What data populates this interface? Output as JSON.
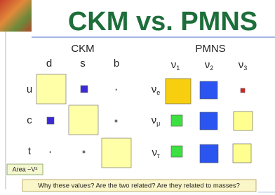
{
  "title": "CKM vs. PMNS",
  "ckm": {
    "heading": "CKM",
    "columns": [
      "d",
      "s",
      "b"
    ],
    "rows": [
      "u",
      "c",
      "t"
    ]
  },
  "pmns": {
    "heading": "PMNS",
    "columns": [
      {
        "base": "ν",
        "sub": "1"
      },
      {
        "base": "ν",
        "sub": "2"
      },
      {
        "base": "ν",
        "sub": "3"
      }
    ],
    "rows": [
      {
        "base": "ν",
        "sub": "e"
      },
      {
        "base": "ν",
        "sub": "μ"
      },
      {
        "base": "ν",
        "sub": "τ"
      }
    ]
  },
  "legend": "Area ~V²",
  "note": "Why these values? Are the two related? Are they related to masses?"
}
